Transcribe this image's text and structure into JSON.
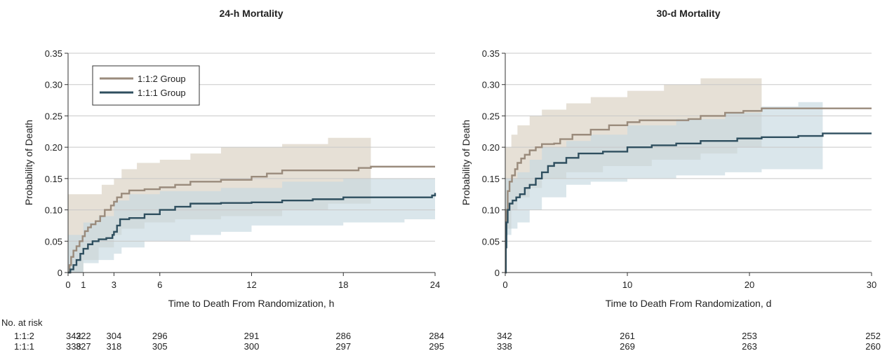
{
  "risk_header": "No. at risk",
  "chart_data": [
    {
      "type": "line",
      "title": "24-h Mortality",
      "xlabel": "Time to Death From Randomization, h",
      "ylabel": "Probability of Death",
      "xlim": [
        0,
        24
      ],
      "ylim": [
        0,
        0.35
      ],
      "xticks": [
        0,
        1,
        3,
        6,
        12,
        18,
        24
      ],
      "yticks": [
        0,
        0.05,
        0.1,
        0.15,
        0.2,
        0.25,
        0.3,
        0.35
      ],
      "ytick_labels": [
        "0",
        "0.05",
        "0.10",
        "0.15",
        "0.20",
        "0.25",
        "0.30",
        "0.35"
      ],
      "grid": "horizontal",
      "legend_position": "top-left",
      "series": [
        {
          "name": "1:1:2 Group",
          "color": "#9a8b7c",
          "band_color": "#d8d0c0",
          "points": [
            [
              0,
              0
            ],
            [
              0.1,
              0.012
            ],
            [
              0.2,
              0.025
            ],
            [
              0.35,
              0.035
            ],
            [
              0.55,
              0.042
            ],
            [
              0.75,
              0.05
            ],
            [
              0.95,
              0.058
            ],
            [
              1.1,
              0.066
            ],
            [
              1.3,
              0.072
            ],
            [
              1.5,
              0.077
            ],
            [
              1.8,
              0.082
            ],
            [
              2.1,
              0.09
            ],
            [
              2.4,
              0.1
            ],
            [
              2.8,
              0.107
            ],
            [
              3.0,
              0.113
            ],
            [
              3.2,
              0.12
            ],
            [
              3.5,
              0.126
            ],
            [
              4.0,
              0.131
            ],
            [
              5.0,
              0.133
            ],
            [
              6.0,
              0.136
            ],
            [
              7.0,
              0.14
            ],
            [
              8.0,
              0.145
            ],
            [
              10.0,
              0.148
            ],
            [
              12.0,
              0.153
            ],
            [
              13.0,
              0.158
            ],
            [
              14.0,
              0.163
            ],
            [
              17.0,
              0.163
            ],
            [
              19.0,
              0.167
            ],
            [
              19.8,
              0.169
            ],
            [
              24.0,
              0.169
            ]
          ],
          "ci_upper": [
            [
              0,
              0.125
            ],
            [
              2.2,
              0.14
            ],
            [
              3.0,
              0.15
            ],
            [
              3.5,
              0.165
            ],
            [
              4.5,
              0.175
            ],
            [
              6.0,
              0.18
            ],
            [
              8.0,
              0.19
            ],
            [
              10.0,
              0.2
            ],
            [
              14.0,
              0.205
            ],
            [
              17.0,
              0.215
            ],
            [
              19.8,
              0.22
            ]
          ],
          "ci_lower": [
            [
              0,
              0
            ],
            [
              1.0,
              0.02
            ],
            [
              2.0,
              0.04
            ],
            [
              3.0,
              0.06
            ],
            [
              3.5,
              0.07
            ],
            [
              5.0,
              0.08
            ],
            [
              7.0,
              0.085
            ],
            [
              10.0,
              0.09
            ],
            [
              14.0,
              0.1
            ],
            [
              17.0,
              0.11
            ],
            [
              19.8,
              0.12
            ]
          ]
        },
        {
          "name": "1:1:1 Group",
          "color": "#2f4f5f",
          "band_color": "#c6d8e0",
          "points": [
            [
              0,
              0
            ],
            [
              0.15,
              0.005
            ],
            [
              0.35,
              0.012
            ],
            [
              0.55,
              0.02
            ],
            [
              0.8,
              0.03
            ],
            [
              1.0,
              0.038
            ],
            [
              1.3,
              0.045
            ],
            [
              1.6,
              0.05
            ],
            [
              2.0,
              0.053
            ],
            [
              2.5,
              0.055
            ],
            [
              2.9,
              0.06
            ],
            [
              3.0,
              0.065
            ],
            [
              3.2,
              0.075
            ],
            [
              3.4,
              0.085
            ],
            [
              4.0,
              0.087
            ],
            [
              5.0,
              0.093
            ],
            [
              6.0,
              0.1
            ],
            [
              7.0,
              0.105
            ],
            [
              8.0,
              0.11
            ],
            [
              10.0,
              0.111
            ],
            [
              12.0,
              0.112
            ],
            [
              14.0,
              0.115
            ],
            [
              16.0,
              0.117
            ],
            [
              18.0,
              0.12
            ],
            [
              23.8,
              0.123
            ],
            [
              24.0,
              0.127
            ]
          ],
          "ci_upper": [
            [
              0,
              0.06
            ],
            [
              1.0,
              0.08
            ],
            [
              2.0,
              0.09
            ],
            [
              3.0,
              0.115
            ],
            [
              4.0,
              0.125
            ],
            [
              6.0,
              0.13
            ],
            [
              10.0,
              0.135
            ],
            [
              14.0,
              0.145
            ],
            [
              18.0,
              0.15
            ],
            [
              24.0,
              0.16
            ]
          ],
          "ci_lower": [
            [
              0,
              0
            ],
            [
              1.0,
              0.015
            ],
            [
              2.0,
              0.02
            ],
            [
              3.0,
              0.03
            ],
            [
              3.5,
              0.04
            ],
            [
              5.0,
              0.05
            ],
            [
              8.0,
              0.06
            ],
            [
              10.0,
              0.065
            ],
            [
              12.0,
              0.075
            ],
            [
              18.0,
              0.08
            ],
            [
              22.0,
              0.085
            ],
            [
              24.0,
              0.085
            ]
          ]
        }
      ],
      "at_risk": {
        "times": [
          0,
          1,
          3,
          6,
          12,
          18,
          24
        ],
        "rows": [
          {
            "label": "1:1:2",
            "values": [
              "342",
              "322",
              "304",
              "296",
              "291",
              "286",
              "284"
            ]
          },
          {
            "label": "1:1:1",
            "values": [
              "338",
              "327",
              "318",
              "305",
              "300",
              "297",
              "295"
            ]
          }
        ]
      }
    },
    {
      "type": "line",
      "title": "30-d Mortality",
      "xlabel": "Time to Death From Randomization, d",
      "ylabel": "Probability of Death",
      "xlim": [
        0,
        30
      ],
      "ylim": [
        0,
        0.35
      ],
      "xticks": [
        0,
        10,
        20,
        30
      ],
      "yticks": [
        0,
        0.05,
        0.1,
        0.15,
        0.2,
        0.25,
        0.3,
        0.35
      ],
      "ytick_labels": [
        "0",
        "0.05",
        "0.10",
        "0.15",
        "0.20",
        "0.25",
        "0.30",
        "0.35"
      ],
      "grid": "horizontal",
      "series": [
        {
          "name": "1:1:2 Group",
          "color": "#9a8b7c",
          "band_color": "#d8d0c0",
          "points": [
            [
              0,
              0
            ],
            [
              0.05,
              0.06
            ],
            [
              0.1,
              0.1
            ],
            [
              0.2,
              0.13
            ],
            [
              0.35,
              0.145
            ],
            [
              0.55,
              0.155
            ],
            [
              0.8,
              0.165
            ],
            [
              1.0,
              0.175
            ],
            [
              1.3,
              0.182
            ],
            [
              1.6,
              0.188
            ],
            [
              2.0,
              0.195
            ],
            [
              2.5,
              0.2
            ],
            [
              3.0,
              0.205
            ],
            [
              4.0,
              0.206
            ],
            [
              4.5,
              0.213
            ],
            [
              5.5,
              0.22
            ],
            [
              7.0,
              0.228
            ],
            [
              8.5,
              0.235
            ],
            [
              10.0,
              0.24
            ],
            [
              11.0,
              0.243
            ],
            [
              12.0,
              0.243
            ],
            [
              15.0,
              0.245
            ],
            [
              16.0,
              0.25
            ],
            [
              18.0,
              0.255
            ],
            [
              19.5,
              0.258
            ],
            [
              21.0,
              0.262
            ],
            [
              30.0,
              0.262
            ]
          ],
          "ci_upper": [
            [
              0,
              0.2
            ],
            [
              0.5,
              0.22
            ],
            [
              1.0,
              0.235
            ],
            [
              2.0,
              0.25
            ],
            [
              3.0,
              0.26
            ],
            [
              5.0,
              0.27
            ],
            [
              7.0,
              0.28
            ],
            [
              10.0,
              0.29
            ],
            [
              13.0,
              0.3
            ],
            [
              16.0,
              0.31
            ],
            [
              21.0,
              0.32
            ]
          ],
          "ci_lower": [
            [
              0,
              0.07
            ],
            [
              0.5,
              0.1
            ],
            [
              1.0,
              0.12
            ],
            [
              2.0,
              0.135
            ],
            [
              3.0,
              0.15
            ],
            [
              5.0,
              0.16
            ],
            [
              8.0,
              0.17
            ],
            [
              12.0,
              0.18
            ],
            [
              16.0,
              0.19
            ],
            [
              19.0,
              0.2
            ],
            [
              21.0,
              0.205
            ]
          ]
        },
        {
          "name": "1:1:1 Group",
          "color": "#2f4f5f",
          "band_color": "#c6d8e0",
          "points": [
            [
              0,
              0
            ],
            [
              0.05,
              0.04
            ],
            [
              0.1,
              0.08
            ],
            [
              0.2,
              0.1
            ],
            [
              0.35,
              0.11
            ],
            [
              0.6,
              0.115
            ],
            [
              0.9,
              0.12
            ],
            [
              1.2,
              0.125
            ],
            [
              1.6,
              0.135
            ],
            [
              2.0,
              0.14
            ],
            [
              2.5,
              0.15
            ],
            [
              3.0,
              0.16
            ],
            [
              3.5,
              0.17
            ],
            [
              4.0,
              0.175
            ],
            [
              5.0,
              0.183
            ],
            [
              6.0,
              0.19
            ],
            [
              8.0,
              0.193
            ],
            [
              10.0,
              0.2
            ],
            [
              12.0,
              0.203
            ],
            [
              14.0,
              0.206
            ],
            [
              16.0,
              0.21
            ],
            [
              19.0,
              0.214
            ],
            [
              21.0,
              0.216
            ],
            [
              24.0,
              0.218
            ],
            [
              26.0,
              0.222
            ],
            [
              30.0,
              0.222
            ]
          ],
          "ci_upper": [
            [
              0,
              0.15
            ],
            [
              1.0,
              0.16
            ],
            [
              2.0,
              0.18
            ],
            [
              3.0,
              0.2
            ],
            [
              5.0,
              0.21
            ],
            [
              7.0,
              0.22
            ],
            [
              10.0,
              0.235
            ],
            [
              14.0,
              0.245
            ],
            [
              18.0,
              0.255
            ],
            [
              21.0,
              0.265
            ],
            [
              24.0,
              0.272
            ],
            [
              26.0,
              0.278
            ]
          ],
          "ci_lower": [
            [
              0,
              0.06
            ],
            [
              0.5,
              0.07
            ],
            [
              1.0,
              0.08
            ],
            [
              2.0,
              0.1
            ],
            [
              3.0,
              0.12
            ],
            [
              5.0,
              0.14
            ],
            [
              7.0,
              0.145
            ],
            [
              10.0,
              0.15
            ],
            [
              14.0,
              0.155
            ],
            [
              18.0,
              0.16
            ],
            [
              21.0,
              0.165
            ],
            [
              26.0,
              0.17
            ]
          ]
        }
      ],
      "at_risk": {
        "times": [
          0,
          10,
          20,
          30
        ],
        "rows": [
          {
            "label": "1:1:2",
            "values": [
              "342",
              "261",
              "253",
              "252"
            ]
          },
          {
            "label": "1:1:1",
            "values": [
              "338",
              "269",
              "263",
              "260"
            ]
          }
        ]
      }
    }
  ]
}
